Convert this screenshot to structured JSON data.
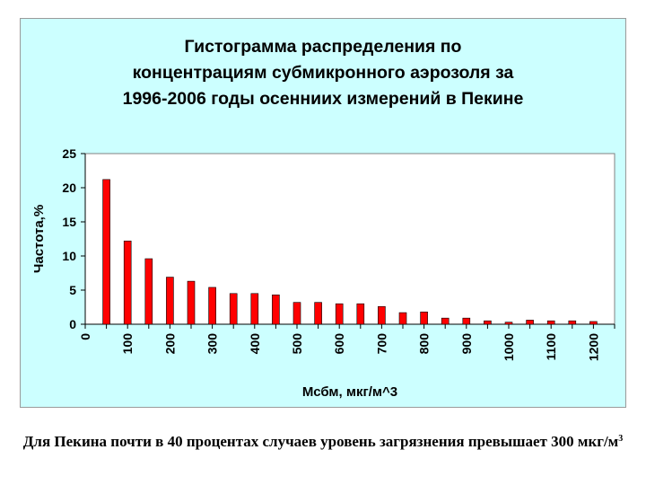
{
  "chart_data": {
    "type": "bar",
    "title_lines": [
      "Гистограмма распределения по",
      "концентрациям субмикронного аэрозоля за",
      "1996-2006 годы осенниих измерений в Пекине"
    ],
    "xlabel": "Мсбм, мкг/м^3",
    "ylabel": "Частота,%",
    "ylim": [
      0,
      25
    ],
    "y_ticks": [
      "0",
      "5",
      "10",
      "15",
      "20",
      "25"
    ],
    "x_tick_labels": [
      "0",
      "100",
      "200",
      "300",
      "400",
      "500",
      "600",
      "700",
      "800",
      "900",
      "1000",
      "1100",
      "1200"
    ],
    "x": [
      50,
      100,
      150,
      200,
      250,
      300,
      350,
      400,
      450,
      500,
      550,
      600,
      650,
      700,
      750,
      800,
      850,
      900,
      950,
      1000,
      1050,
      1100,
      1150,
      1200
    ],
    "values": [
      21.2,
      12.2,
      9.6,
      6.9,
      6.3,
      5.4,
      4.5,
      4.5,
      4.3,
      3.2,
      3.2,
      3.0,
      3.0,
      2.6,
      1.7,
      1.8,
      0.9,
      0.9,
      0.5,
      0.3,
      0.6,
      0.5,
      0.5,
      0.4
    ],
    "bar_color": "#ff0000",
    "grid": false,
    "legend": "none"
  },
  "caption": {
    "text": "Для Пекина почти в 40 процентах случаев уровень загрязнения превышает 300 мкг/м",
    "superscript": "3"
  }
}
